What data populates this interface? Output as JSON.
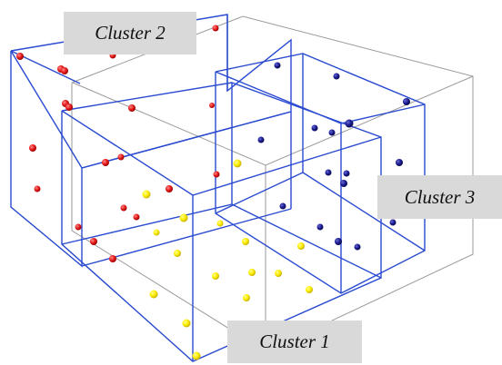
{
  "labels": {
    "cluster1": "Cluster 1",
    "cluster2": "Cluster 2",
    "cluster3": "Cluster 3"
  },
  "colors": {
    "cluster1": "#ffee00",
    "cluster2": "#ee2222",
    "cluster3": "#1a1a8c",
    "cluster_box": "#2244cc",
    "outer_box": "#999999"
  }
}
